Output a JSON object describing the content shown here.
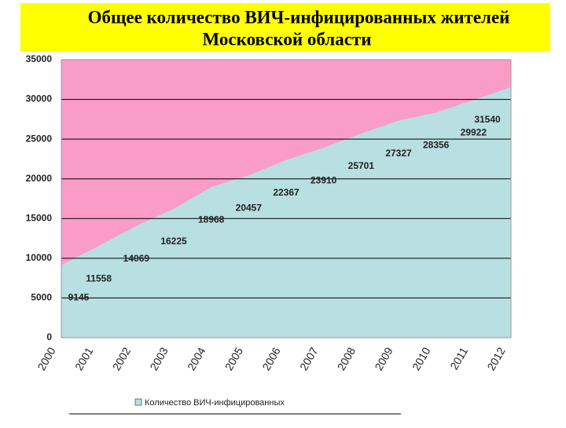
{
  "chart_data": {
    "type": "area",
    "title": [
      "Общее количество ВИЧ-инфицированных  жителей",
      "Московской области"
    ],
    "categories": [
      "2000",
      "2001",
      "2002",
      "2003",
      "2004",
      "2005",
      "2006",
      "2007",
      "2008",
      "2009",
      "2010",
      "2011",
      "2012"
    ],
    "series": [
      {
        "name": "Количество ВИЧ-инфицированных",
        "color": "#b8dfe2",
        "values": [
          9145,
          11558,
          14069,
          16225,
          18968,
          20457,
          22367,
          23910,
          25701,
          27327,
          28356,
          29922,
          31540
        ]
      }
    ],
    "plot_background": "#fa9cc8",
    "ylim": [
      0,
      35000
    ],
    "yticks": [
      0,
      5000,
      10000,
      15000,
      20000,
      25000,
      30000,
      35000
    ],
    "grid": true,
    "legend": "bottom"
  }
}
